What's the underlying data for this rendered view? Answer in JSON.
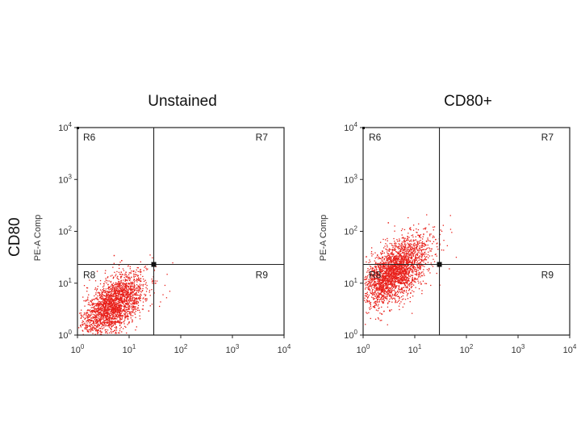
{
  "figure": {
    "marker_label": "CD80"
  },
  "chart_data": [
    {
      "type": "scatter",
      "title": "Unstained",
      "ylabel": "PE-A Comp",
      "xlabel": "",
      "x_scale": "log",
      "y_scale": "log",
      "xlim": [
        1,
        10000
      ],
      "ylim": [
        1,
        10000
      ],
      "x_ticks": [
        {
          "base": "10",
          "exp": "0"
        },
        {
          "base": "10",
          "exp": "1"
        },
        {
          "base": "10",
          "exp": "2"
        },
        {
          "base": "10",
          "exp": "3"
        },
        {
          "base": "10",
          "exp": "4"
        }
      ],
      "y_ticks": [
        {
          "base": "10",
          "exp": "0"
        },
        {
          "base": "10",
          "exp": "1"
        },
        {
          "base": "10",
          "exp": "2"
        },
        {
          "base": "10",
          "exp": "3"
        },
        {
          "base": "10",
          "exp": "4"
        }
      ],
      "gate": {
        "x": 30,
        "y": 23
      },
      "regions": [
        {
          "label": "R6",
          "quadrant": "top-left"
        },
        {
          "label": "R7",
          "quadrant": "top-right"
        },
        {
          "label": "R8",
          "quadrant": "bottom-left"
        },
        {
          "label": "R9",
          "quadrant": "bottom-right"
        }
      ],
      "population": {
        "x_center": 5,
        "y_center": 4,
        "spread": 0.3,
        "count": 2200,
        "color": "#e8201a"
      },
      "outliers": [
        [
          5,
          35
        ],
        [
          7,
          28
        ]
      ]
    },
    {
      "type": "scatter",
      "title": "CD80+",
      "ylabel": "PE-A Comp",
      "xlabel": "",
      "x_scale": "log",
      "y_scale": "log",
      "xlim": [
        1,
        10000
      ],
      "ylim": [
        1,
        10000
      ],
      "x_ticks": [
        {
          "base": "10",
          "exp": "0"
        },
        {
          "base": "10",
          "exp": "1"
        },
        {
          "base": "10",
          "exp": "2"
        },
        {
          "base": "10",
          "exp": "3"
        },
        {
          "base": "10",
          "exp": "4"
        }
      ],
      "y_ticks": [
        {
          "base": "10",
          "exp": "0"
        },
        {
          "base": "10",
          "exp": "1"
        },
        {
          "base": "10",
          "exp": "2"
        },
        {
          "base": "10",
          "exp": "3"
        },
        {
          "base": "10",
          "exp": "4"
        }
      ],
      "gate": {
        "x": 30,
        "y": 23
      },
      "regions": [
        {
          "label": "R6",
          "quadrant": "top-left"
        },
        {
          "label": "R7",
          "quadrant": "top-right"
        },
        {
          "label": "R8",
          "quadrant": "bottom-left"
        },
        {
          "label": "R9",
          "quadrant": "bottom-right"
        }
      ],
      "population": {
        "x_center": 4,
        "y_center": 17,
        "spread": 0.33,
        "count": 2600,
        "color": "#e8201a"
      },
      "outliers": [
        [
          3,
          150
        ],
        [
          8,
          120
        ]
      ]
    }
  ]
}
